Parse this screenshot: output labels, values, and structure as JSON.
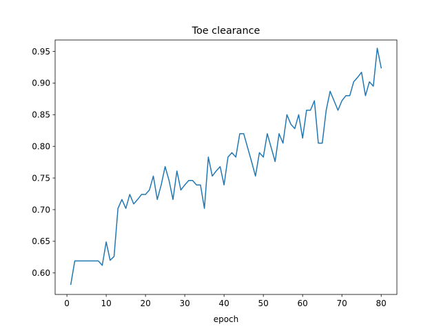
{
  "chart_data": {
    "type": "line",
    "title": "Toe clearance",
    "xlabel": "epoch",
    "ylabel": "",
    "xlim": [
      -3,
      84
    ],
    "ylim": [
      0.566,
      0.968
    ],
    "xticks": [
      0,
      10,
      20,
      30,
      40,
      50,
      60,
      70,
      80
    ],
    "yticks": [
      0.6,
      0.65,
      0.7,
      0.75,
      0.8,
      0.85,
      0.9,
      0.95
    ],
    "xtick_labels": [
      "0",
      "10",
      "20",
      "30",
      "40",
      "50",
      "60",
      "70",
      "80"
    ],
    "ytick_labels": [
      "0.60",
      "0.65",
      "0.70",
      "0.75",
      "0.80",
      "0.85",
      "0.90",
      "0.95"
    ],
    "grid": false,
    "series": [
      {
        "color": "#1f77b4",
        "x": [
          1,
          2,
          3,
          4,
          5,
          6,
          7,
          8,
          9,
          10,
          11,
          12,
          13,
          14,
          15,
          16,
          17,
          18,
          19,
          20,
          21,
          22,
          23,
          24,
          25,
          26,
          27,
          28,
          29,
          30,
          31,
          32,
          33,
          34,
          35,
          36,
          37,
          38,
          39,
          40,
          41,
          42,
          43,
          44,
          45,
          46,
          47,
          48,
          49,
          50,
          51,
          52,
          53,
          54,
          55,
          56,
          57,
          58,
          59,
          60,
          61,
          62,
          63,
          64,
          65,
          66,
          67,
          68,
          69,
          70,
          71,
          72,
          73,
          74,
          75,
          76,
          77,
          78,
          79,
          80
        ],
        "values": [
          0.582,
          0.619,
          0.619,
          0.619,
          0.619,
          0.619,
          0.619,
          0.619,
          0.612,
          0.649,
          0.62,
          0.626,
          0.702,
          0.716,
          0.702,
          0.724,
          0.709,
          0.716,
          0.724,
          0.724,
          0.731,
          0.753,
          0.716,
          0.739,
          0.768,
          0.746,
          0.716,
          0.761,
          0.731,
          0.739,
          0.746,
          0.746,
          0.739,
          0.739,
          0.702,
          0.783,
          0.753,
          0.761,
          0.768,
          0.739,
          0.783,
          0.79,
          0.783,
          0.82,
          0.82,
          0.798,
          0.776,
          0.753,
          0.79,
          0.783,
          0.82,
          0.798,
          0.776,
          0.82,
          0.805,
          0.85,
          0.835,
          0.828,
          0.85,
          0.813,
          0.857,
          0.857,
          0.872,
          0.805,
          0.805,
          0.857,
          0.887,
          0.872,
          0.857,
          0.872,
          0.88,
          0.88,
          0.902,
          0.909,
          0.917,
          0.88,
          0.902,
          0.895,
          0.955,
          0.924
        ]
      }
    ]
  }
}
